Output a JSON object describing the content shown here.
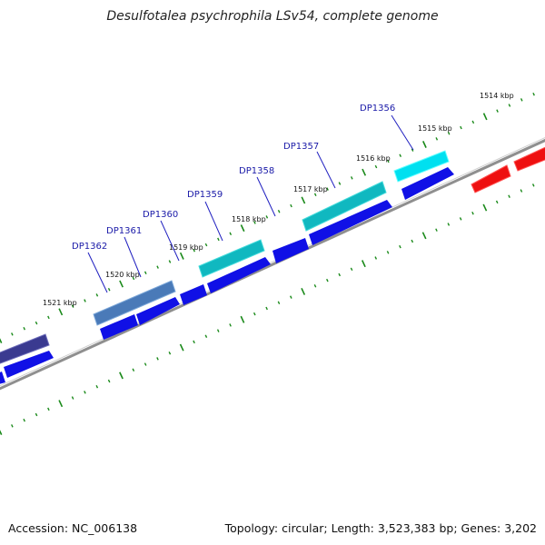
{
  "title": "Desulfotalea psychrophila LSv54, complete genome",
  "footer": {
    "accession": "Accession: NC_006138",
    "info": "Topology: circular; Length: 3,523,383 bp; Genes: 3,202"
  },
  "colors": {
    "backbone": "#8a8a8a",
    "ticks": "#1a8a1a",
    "forward_gene": "#1010e6",
    "reverse_gene": "#ee1010",
    "label": "#1a1aa8"
  },
  "scale": {
    "unit": "kbp",
    "labels": [
      "1514 kbp",
      "1515 kbp",
      "1516 kbp",
      "1517 kbp",
      "1518 kbp",
      "1519 kbp",
      "1520 kbp",
      "1521 kbp"
    ]
  },
  "genes_labeled": [
    "DP1356",
    "DP1357",
    "DP1358",
    "DP1359",
    "DP1360",
    "DP1361",
    "DP1362"
  ]
}
